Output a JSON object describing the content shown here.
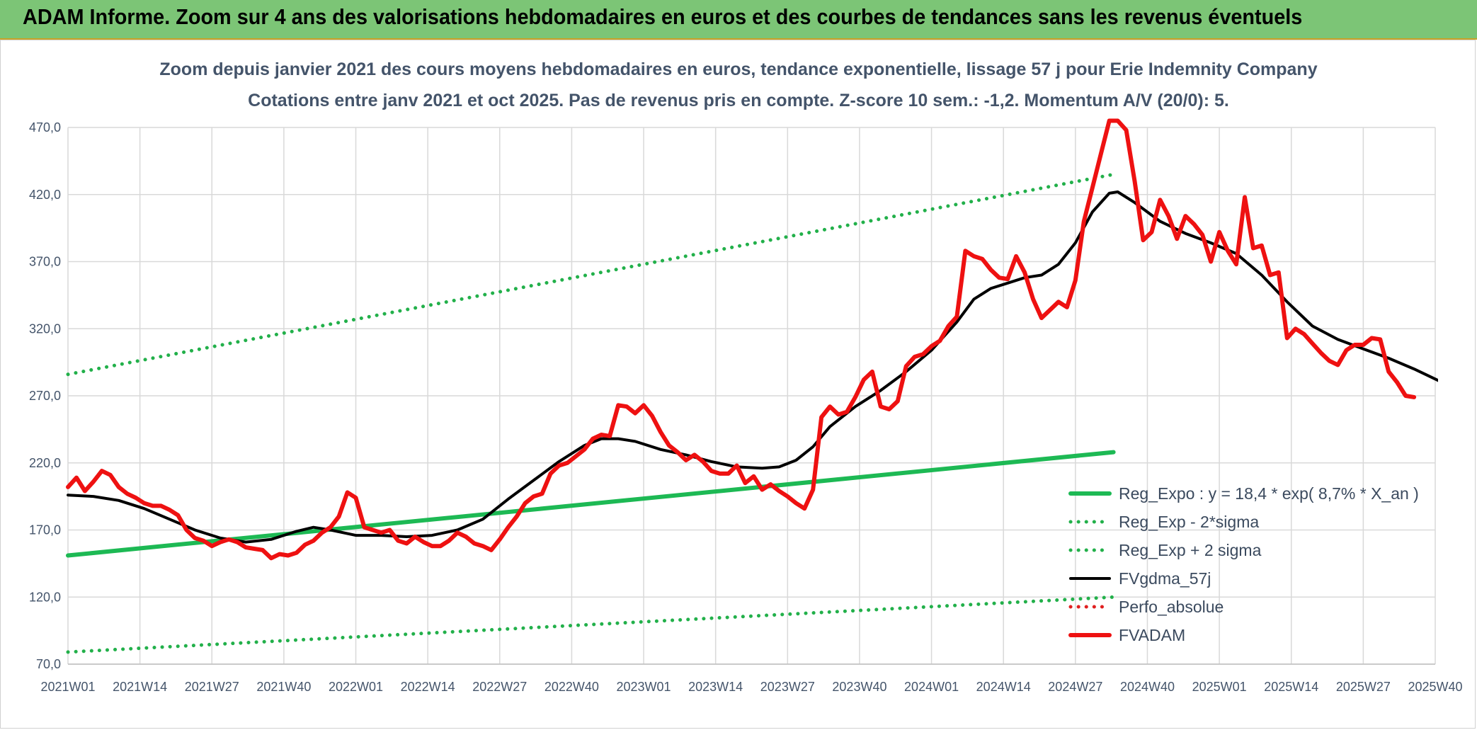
{
  "header": {
    "title": "ADAM Informe. Zoom sur 4 ans des valorisations hebdomadaires en euros et des courbes de tendances sans les revenus éventuels"
  },
  "colors": {
    "header_bg": "#7cc576",
    "trend": "#1db954",
    "band": "#22b04a",
    "fvgdma": "#000000",
    "perfo": "#e02020",
    "fvadam": "#ee1111"
  },
  "chart_data": {
    "type": "line",
    "title": "Zoom depuis janvier 2021 des cours moyens hebdomadaires en euros, tendance exponentielle, lissage 57 j pour Erie Indemnity Company",
    "subtitle": "Cotations entre janv 2021 et oct 2025. Pas de revenus pris en compte. Z-score 10 sem.: -1,2. Momentum A/V (20/0): 5.",
    "xlabel": "",
    "ylabel": "",
    "ylim": [
      70,
      470
    ],
    "yticks": [
      "70,0",
      "120,0",
      "170,0",
      "220,0",
      "270,0",
      "320,0",
      "370,0",
      "420,0",
      "470,0"
    ],
    "x_tick_labels": [
      "2021W01",
      "2021W14",
      "2021W27",
      "2021W40",
      "2022W01",
      "2022W14",
      "2022W27",
      "2022W40",
      "2023W01",
      "2023W14",
      "2023W27",
      "2023W40",
      "2024W01",
      "2024W14",
      "2024W27",
      "2024W40",
      "2025W01",
      "2025W14",
      "2025W27",
      "2025W40"
    ],
    "x_range_weeks": [
      0,
      247
    ],
    "series": [
      {
        "name": "Reg_Expo : y = 18,4 * exp( 8,7% *  X_an )",
        "style": "solid-thick",
        "color": "#1db954",
        "points": [
          [
            0,
            151
          ],
          [
            247,
            228
          ]
        ]
      },
      {
        "name": "Reg_Exp - 2*sigma",
        "style": "dotted",
        "color": "#22b04a",
        "points": [
          [
            0,
            79
          ],
          [
            247,
            120
          ]
        ]
      },
      {
        "name": "Reg_Exp + 2 sigma",
        "style": "dotted",
        "color": "#22b04a",
        "points": [
          [
            0,
            286
          ],
          [
            247,
            435
          ]
        ]
      },
      {
        "name": "FVgdma_57j",
        "style": "solid",
        "color": "#000000",
        "points": [
          [
            0,
            196
          ],
          [
            6,
            195
          ],
          [
            12,
            192
          ],
          [
            18,
            186
          ],
          [
            24,
            178
          ],
          [
            30,
            170
          ],
          [
            36,
            164
          ],
          [
            42,
            161
          ],
          [
            48,
            163
          ],
          [
            54,
            169
          ],
          [
            58,
            172
          ],
          [
            62,
            170
          ],
          [
            68,
            166
          ],
          [
            74,
            166
          ],
          [
            80,
            165
          ],
          [
            86,
            166
          ],
          [
            92,
            170
          ],
          [
            98,
            178
          ],
          [
            104,
            193
          ],
          [
            110,
            207
          ],
          [
            116,
            221
          ],
          [
            122,
            233
          ],
          [
            126,
            238
          ],
          [
            130,
            238
          ],
          [
            134,
            236
          ],
          [
            140,
            230
          ],
          [
            146,
            226
          ],
          [
            152,
            221
          ],
          [
            158,
            217
          ],
          [
            164,
            216
          ],
          [
            168,
            217
          ],
          [
            172,
            222
          ],
          [
            176,
            232
          ],
          [
            180,
            247
          ],
          [
            186,
            262
          ],
          [
            192,
            274
          ],
          [
            198,
            288
          ],
          [
            204,
            304
          ],
          [
            210,
            325
          ],
          [
            214,
            342
          ],
          [
            218,
            350
          ],
          [
            222,
            354
          ],
          [
            226,
            358
          ],
          [
            230,
            360
          ],
          [
            234,
            368
          ],
          [
            238,
            384
          ],
          [
            242,
            407
          ],
          [
            246,
            421
          ],
          [
            248,
            422
          ],
          [
            252,
            414
          ],
          [
            258,
            400
          ],
          [
            264,
            391
          ],
          [
            270,
            384
          ],
          [
            276,
            376
          ],
          [
            282,
            360
          ],
          [
            288,
            340
          ],
          [
            294,
            322
          ],
          [
            300,
            312
          ],
          [
            306,
            305
          ],
          [
            312,
            298
          ],
          [
            318,
            290
          ],
          [
            324,
            281
          ]
        ]
      },
      {
        "name": "Perfo_absolue",
        "style": "dotted",
        "color": "#e02020",
        "points": []
      },
      {
        "name": "FVADAM",
        "style": "solid-thick",
        "color": "#ee1111",
        "points": [
          [
            0,
            202
          ],
          [
            2,
            209
          ],
          [
            4,
            199
          ],
          [
            6,
            206
          ],
          [
            8,
            214
          ],
          [
            10,
            211
          ],
          [
            12,
            202
          ],
          [
            14,
            197
          ],
          [
            16,
            194
          ],
          [
            18,
            190
          ],
          [
            20,
            188
          ],
          [
            22,
            188
          ],
          [
            24,
            185
          ],
          [
            26,
            181
          ],
          [
            28,
            170
          ],
          [
            30,
            164
          ],
          [
            32,
            162
          ],
          [
            34,
            158
          ],
          [
            36,
            161
          ],
          [
            38,
            163
          ],
          [
            40,
            161
          ],
          [
            42,
            157
          ],
          [
            44,
            156
          ],
          [
            46,
            155
          ],
          [
            48,
            149
          ],
          [
            50,
            152
          ],
          [
            52,
            151
          ],
          [
            54,
            153
          ],
          [
            56,
            159
          ],
          [
            58,
            162
          ],
          [
            60,
            168
          ],
          [
            62,
            172
          ],
          [
            64,
            180
          ],
          [
            66,
            198
          ],
          [
            68,
            194
          ],
          [
            70,
            172
          ],
          [
            72,
            170
          ],
          [
            74,
            168
          ],
          [
            76,
            170
          ],
          [
            78,
            162
          ],
          [
            80,
            160
          ],
          [
            82,
            165
          ],
          [
            84,
            161
          ],
          [
            86,
            158
          ],
          [
            88,
            158
          ],
          [
            90,
            162
          ],
          [
            92,
            168
          ],
          [
            94,
            165
          ],
          [
            96,
            160
          ],
          [
            98,
            158
          ],
          [
            100,
            155
          ],
          [
            102,
            163
          ],
          [
            104,
            172
          ],
          [
            106,
            180
          ],
          [
            108,
            190
          ],
          [
            110,
            195
          ],
          [
            112,
            197
          ],
          [
            114,
            212
          ],
          [
            116,
            218
          ],
          [
            118,
            220
          ],
          [
            120,
            225
          ],
          [
            122,
            230
          ],
          [
            124,
            238
          ],
          [
            126,
            241
          ],
          [
            128,
            240
          ],
          [
            130,
            263
          ],
          [
            132,
            262
          ],
          [
            134,
            257
          ],
          [
            136,
            263
          ],
          [
            138,
            255
          ],
          [
            140,
            243
          ],
          [
            142,
            233
          ],
          [
            144,
            228
          ],
          [
            146,
            222
          ],
          [
            148,
            226
          ],
          [
            150,
            221
          ],
          [
            152,
            214
          ],
          [
            154,
            212
          ],
          [
            156,
            212
          ],
          [
            158,
            218
          ],
          [
            160,
            205
          ],
          [
            162,
            210
          ],
          [
            164,
            200
          ],
          [
            166,
            204
          ],
          [
            168,
            199
          ],
          [
            170,
            195
          ],
          [
            172,
            190
          ],
          [
            174,
            186
          ],
          [
            176,
            200
          ],
          [
            178,
            254
          ],
          [
            180,
            262
          ],
          [
            182,
            256
          ],
          [
            184,
            258
          ],
          [
            186,
            269
          ],
          [
            188,
            282
          ],
          [
            190,
            288
          ],
          [
            192,
            262
          ],
          [
            194,
            260
          ],
          [
            196,
            266
          ],
          [
            198,
            292
          ],
          [
            200,
            299
          ],
          [
            202,
            301
          ],
          [
            204,
            307
          ],
          [
            206,
            311
          ],
          [
            208,
            322
          ],
          [
            210,
            329
          ],
          [
            212,
            378
          ],
          [
            214,
            374
          ],
          [
            216,
            372
          ],
          [
            218,
            364
          ],
          [
            220,
            358
          ],
          [
            222,
            357
          ],
          [
            224,
            374
          ],
          [
            226,
            362
          ],
          [
            228,
            342
          ],
          [
            230,
            328
          ],
          [
            232,
            334
          ],
          [
            234,
            340
          ],
          [
            236,
            336
          ],
          [
            238,
            356
          ],
          [
            240,
            400
          ],
          [
            242,
            425
          ],
          [
            244,
            450
          ],
          [
            246,
            475
          ],
          [
            248,
            475
          ],
          [
            250,
            468
          ],
          [
            252,
            430
          ],
          [
            254,
            386
          ],
          [
            256,
            392
          ],
          [
            258,
            416
          ],
          [
            260,
            404
          ],
          [
            262,
            387
          ],
          [
            264,
            404
          ],
          [
            266,
            398
          ],
          [
            268,
            390
          ],
          [
            270,
            370
          ],
          [
            272,
            392
          ],
          [
            274,
            378
          ],
          [
            276,
            368
          ],
          [
            278,
            418
          ],
          [
            280,
            380
          ],
          [
            282,
            382
          ],
          [
            284,
            360
          ],
          [
            286,
            362
          ],
          [
            288,
            313
          ],
          [
            290,
            320
          ],
          [
            292,
            316
          ],
          [
            294,
            309
          ],
          [
            296,
            302
          ],
          [
            298,
            296
          ],
          [
            300,
            293
          ],
          [
            302,
            304
          ],
          [
            304,
            308
          ],
          [
            306,
            308
          ],
          [
            308,
            313
          ],
          [
            310,
            312
          ],
          [
            312,
            288
          ],
          [
            314,
            280
          ],
          [
            316,
            270
          ],
          [
            318,
            269
          ]
        ]
      }
    ],
    "legend_position": "bottom-right"
  }
}
